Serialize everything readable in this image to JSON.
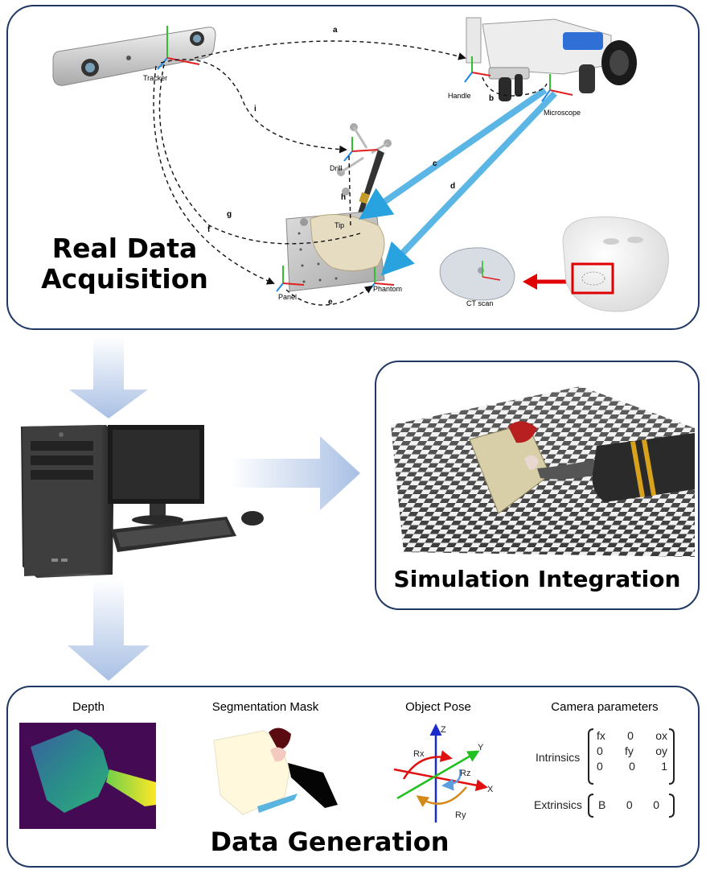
{
  "sections": {
    "acquisition_title_line1": "Real Data",
    "acquisition_title_line2": "Acquisition",
    "simulation_title": "Simulation Integration",
    "generation_title": "Data Generation"
  },
  "acquisition": {
    "labels": {
      "tracker": "Tracker",
      "handle": "Handle",
      "microscope": "Microscope",
      "drill": "Drill",
      "tip": "Tip",
      "panel": "Panel",
      "phantom": "Phantom",
      "ct_scan": "CT scan"
    },
    "edge_letters": [
      "a",
      "b",
      "c",
      "d",
      "e",
      "f",
      "g",
      "h",
      "i"
    ]
  },
  "generation": {
    "depth_label": "Depth",
    "segmentation_label": "Segmentation Mask",
    "pose_label": "Object Pose",
    "camera_label": "Camera parameters",
    "pose_axes": {
      "z": "Z",
      "y": "Y",
      "x": "X",
      "rx": "Rx",
      "ry": "Ry",
      "rz": "Rz"
    },
    "intrinsics_label": "Intrinsics",
    "extrinsics_label": "Extrinsics",
    "intrinsics_matrix": [
      [
        "fx",
        "0",
        "ox"
      ],
      [
        "0",
        "fy",
        "oy"
      ],
      [
        "0",
        "0",
        "1"
      ]
    ],
    "extrinsics_matrix": [
      "B",
      "0",
      "0"
    ]
  },
  "colors": {
    "panel_border": "#1f3864",
    "flow_arrow": "#b4c7e7",
    "beam_blue": "#3fa9e0",
    "ct_arrow_red": "#e00000"
  }
}
